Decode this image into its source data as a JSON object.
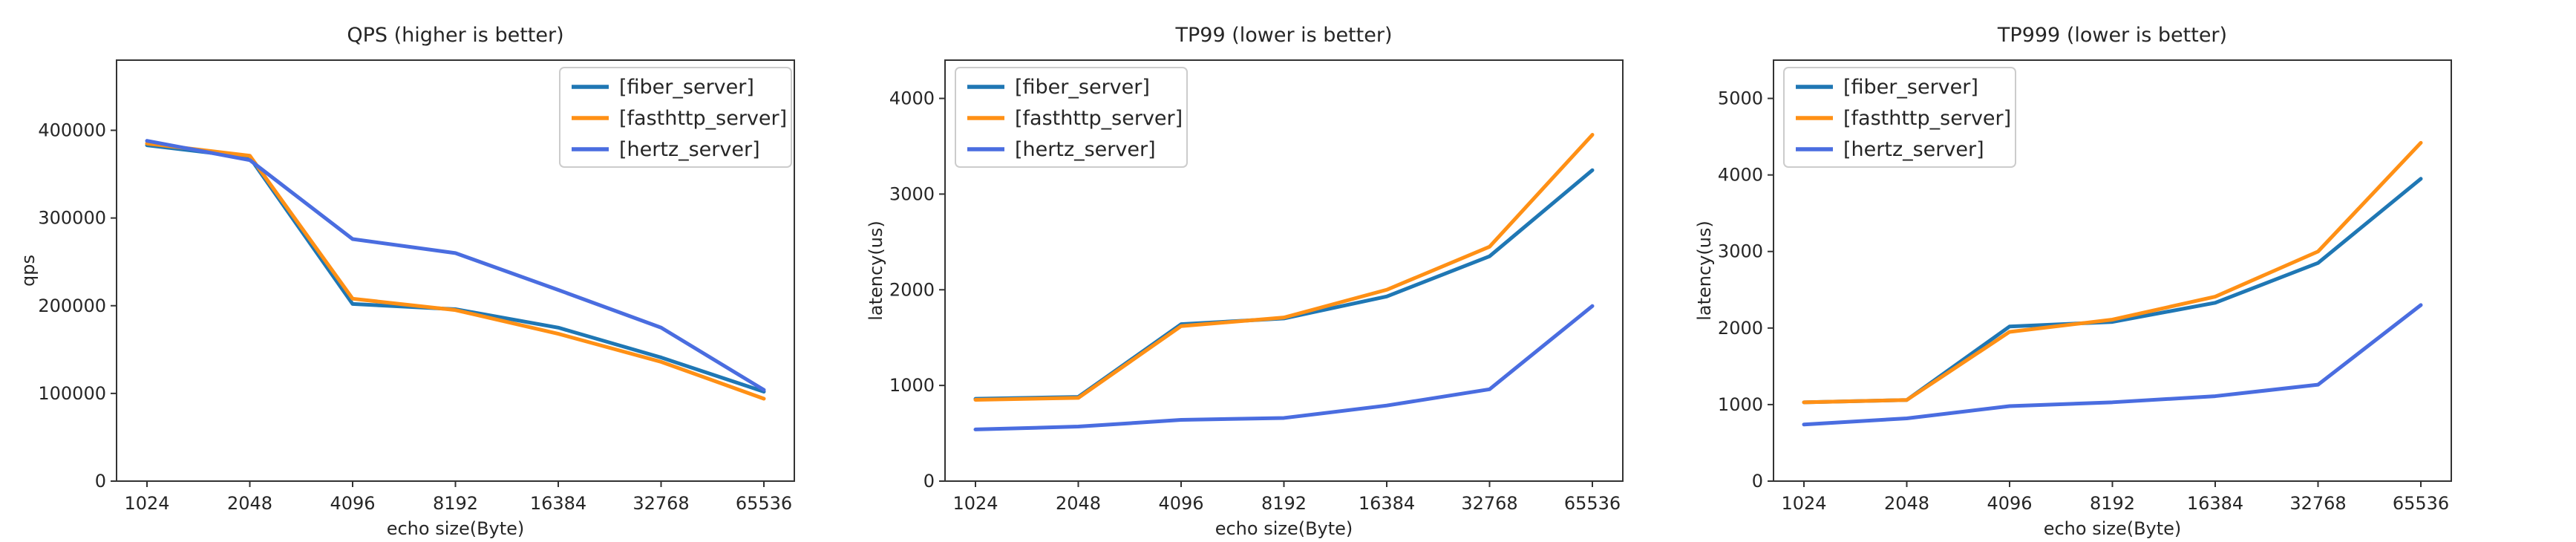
{
  "figure": {
    "background": "#ffffff",
    "text_color": "#262626",
    "spine_color": "#333333",
    "legend_border_color": "#cccccc",
    "legend_background": "#ffffff"
  },
  "chart_data": [
    {
      "type": "line",
      "title": "QPS (higher is better)",
      "xlabel": "echo size(Byte)",
      "ylabel": "qps",
      "categories": [
        "1024",
        "2048",
        "4096",
        "8192",
        "16384",
        "32768",
        "65536"
      ],
      "yticks": [
        0,
        100000,
        200000,
        300000,
        400000
      ],
      "ylim": [
        0,
        480000
      ],
      "grid": false,
      "legend_position": "upper-right",
      "series": [
        {
          "name": "[fiber_server]",
          "color": "#1f77b4",
          "values": [
            383000,
            369000,
            202000,
            196000,
            175000,
            141000,
            102000
          ]
        },
        {
          "name": "[fasthttp_server]",
          "color": "#ff9015",
          "values": [
            385000,
            371000,
            208000,
            195000,
            168000,
            136000,
            94000
          ]
        },
        {
          "name": "[hertz_server]",
          "color": "#4a6de0",
          "values": [
            388000,
            366000,
            276000,
            260000,
            218000,
            175000,
            104000
          ]
        }
      ]
    },
    {
      "type": "line",
      "title": "TP99 (lower is better)",
      "xlabel": "echo size(Byte)",
      "ylabel": "latency(us)",
      "categories": [
        "1024",
        "2048",
        "4096",
        "8192",
        "16384",
        "32768",
        "65536"
      ],
      "yticks": [
        0,
        1000,
        2000,
        3000,
        4000
      ],
      "ylim": [
        0,
        4400
      ],
      "grid": false,
      "legend_position": "upper-left",
      "series": [
        {
          "name": "[fiber_server]",
          "color": "#1f77b4",
          "values": [
            860,
            880,
            1640,
            1700,
            1930,
            2350,
            3250
          ]
        },
        {
          "name": "[fasthttp_server]",
          "color": "#ff9015",
          "values": [
            850,
            870,
            1620,
            1710,
            2000,
            2450,
            3620
          ]
        },
        {
          "name": "[hertz_server]",
          "color": "#4a6de0",
          "values": [
            540,
            570,
            640,
            660,
            790,
            960,
            1830
          ]
        }
      ]
    },
    {
      "type": "line",
      "title": "TP999 (lower is better)",
      "xlabel": "echo size(Byte)",
      "ylabel": "latency(us)",
      "categories": [
        "1024",
        "2048",
        "4096",
        "8192",
        "16384",
        "32768",
        "65536"
      ],
      "yticks": [
        0,
        1000,
        2000,
        3000,
        4000,
        5000
      ],
      "ylim": [
        0,
        5500
      ],
      "grid": false,
      "legend_position": "upper-left",
      "series": [
        {
          "name": "[fiber_server]",
          "color": "#1f77b4",
          "values": [
            1030,
            1060,
            2020,
            2080,
            2330,
            2850,
            3950
          ]
        },
        {
          "name": "[fasthttp_server]",
          "color": "#ff9015",
          "values": [
            1030,
            1060,
            1950,
            2110,
            2410,
            3000,
            4420
          ]
        },
        {
          "name": "[hertz_server]",
          "color": "#4a6de0",
          "values": [
            740,
            820,
            980,
            1030,
            1110,
            1260,
            2300
          ]
        }
      ]
    }
  ]
}
